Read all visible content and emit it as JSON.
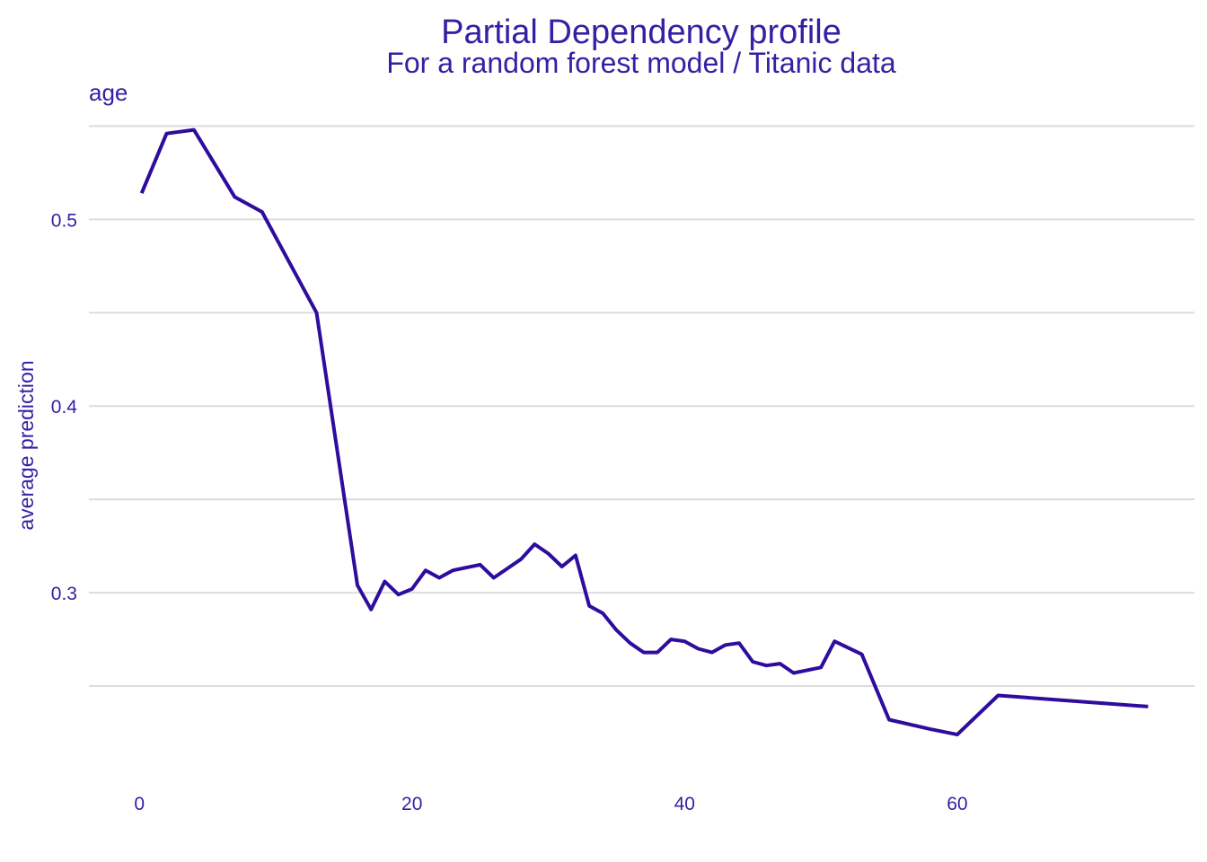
{
  "chart_data": {
    "type": "line",
    "title": "Partial Dependency profile",
    "subtitle": "For a random forest model / Titanic data",
    "facet_label": "age",
    "xlabel": "",
    "ylabel": "average prediction",
    "xlim": [
      -3.7,
      77.4
    ],
    "ylim": [
      0.2,
      0.555
    ],
    "x_ticks": [
      0,
      20,
      40,
      60
    ],
    "y_ticks": [
      0.3,
      0.4,
      0.5
    ],
    "y_grid": [
      0.25,
      0.3,
      0.35,
      0.4,
      0.45,
      0.5,
      0.55
    ],
    "grid": true,
    "line_color": "#2e0c9e",
    "series": [
      {
        "x": [
          0.17,
          2,
          4,
          7,
          9,
          13,
          16,
          17,
          18,
          19,
          20,
          21,
          22,
          23,
          25,
          26,
          27,
          28,
          29,
          30,
          31,
          32,
          33,
          34,
          35,
          36,
          37,
          38,
          39,
          40,
          41,
          42,
          43,
          44,
          45,
          46,
          47,
          48,
          50,
          51,
          53,
          55,
          58,
          60,
          63,
          74
        ],
        "y": [
          0.514,
          0.546,
          0.548,
          0.512,
          0.504,
          0.45,
          0.304,
          0.291,
          0.306,
          0.299,
          0.302,
          0.312,
          0.308,
          0.312,
          0.315,
          0.308,
          0.313,
          0.318,
          0.326,
          0.321,
          0.314,
          0.32,
          0.293,
          0.289,
          0.28,
          0.273,
          0.268,
          0.268,
          0.275,
          0.274,
          0.27,
          0.268,
          0.272,
          0.273,
          0.263,
          0.261,
          0.262,
          0.257,
          0.26,
          0.274,
          0.267,
          0.232,
          0.227,
          0.224,
          0.245,
          0.239
        ]
      }
    ]
  }
}
